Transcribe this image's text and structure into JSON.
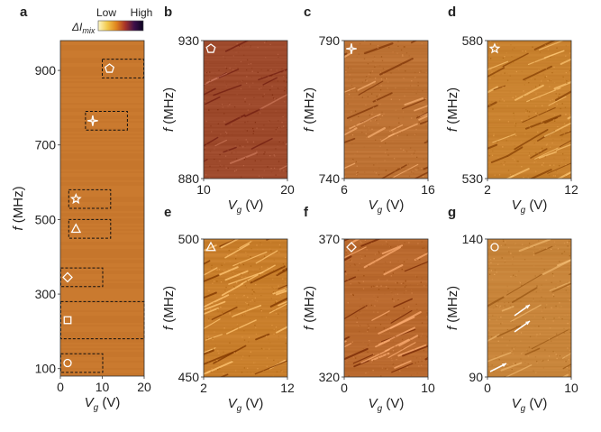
{
  "colorbar": {
    "symbol": "ΔI",
    "subscript": "mix",
    "low_label": "Low",
    "high_label": "High",
    "colors": [
      "#fdf7c6",
      "#f2c94c",
      "#e0851e",
      "#a8322a",
      "#3c0f4a",
      "#0b0320"
    ]
  },
  "chart_data": [
    {
      "panel": "a",
      "type": "heatmap",
      "xlabel_var": "V",
      "xlabel_sub": "g",
      "xlabel_unit": "(V)",
      "ylabel_var": "f",
      "ylabel_unit": "(MHz)",
      "xlim": [
        0,
        20
      ],
      "ylim": [
        80,
        980
      ],
      "xticks": [
        "0",
        "10",
        "20"
      ],
      "yticks": [
        "100",
        "300",
        "500",
        "700",
        "900"
      ],
      "base_color": "#c8782e",
      "regions": [
        {
          "marker": "pentagon",
          "x0": 10,
          "x1": 20,
          "y0": 880,
          "y1": 930
        },
        {
          "marker": "star4",
          "x0": 6,
          "x1": 16,
          "y0": 740,
          "y1": 790
        },
        {
          "marker": "star5",
          "x0": 2,
          "x1": 12,
          "y0": 530,
          "y1": 580
        },
        {
          "marker": "triangle",
          "x0": 2,
          "x1": 12,
          "y0": 450,
          "y1": 500
        },
        {
          "marker": "diamond",
          "x0": 0,
          "x1": 10,
          "y0": 320,
          "y1": 370
        },
        {
          "marker": "square",
          "x0": 0,
          "x1": 20,
          "y0": 180,
          "y1": 280
        },
        {
          "marker": "circle",
          "x0": 0,
          "x1": 10,
          "y0": 90,
          "y1": 140
        }
      ]
    },
    {
      "panel": "b",
      "type": "heatmap",
      "marker": "pentagon",
      "xlim": [
        10,
        20
      ],
      "ylim": [
        880,
        930
      ],
      "xticks": [
        "10",
        "20"
      ],
      "yticks": [
        "880",
        "930"
      ],
      "base_color": "#9e4a2c",
      "stripes": 0.25
    },
    {
      "panel": "c",
      "type": "heatmap",
      "marker": "star4",
      "xlim": [
        6,
        16
      ],
      "ylim": [
        740,
        790
      ],
      "xticks": [
        "6",
        "16"
      ],
      "yticks": [
        "740",
        "790"
      ],
      "base_color": "#bd7234",
      "stripes": 0.6
    },
    {
      "panel": "d",
      "type": "heatmap",
      "marker": "star5",
      "xlim": [
        2,
        12
      ],
      "ylim": [
        530,
        580
      ],
      "xticks": [
        "2",
        "12"
      ],
      "yticks": [
        "530",
        "580"
      ],
      "base_color": "#c9822f",
      "stripes": 0.7
    },
    {
      "panel": "e",
      "type": "heatmap",
      "marker": "triangle",
      "xlim": [
        2,
        12
      ],
      "ylim": [
        450,
        500
      ],
      "xticks": [
        "2",
        "12"
      ],
      "yticks": [
        "450",
        "500"
      ],
      "base_color": "#c97f2c",
      "stripes": 0.9
    },
    {
      "panel": "f",
      "type": "heatmap",
      "marker": "diamond",
      "xlim": [
        0,
        10
      ],
      "ylim": [
        320,
        370
      ],
      "xticks": [
        "0",
        "10"
      ],
      "yticks": [
        "320",
        "370"
      ],
      "base_color": "#b9692e",
      "stripes": 0.75
    },
    {
      "panel": "g",
      "type": "heatmap",
      "marker": "circle",
      "xlim": [
        0,
        10
      ],
      "ylim": [
        90,
        140
      ],
      "xticks": [
        "0",
        "10"
      ],
      "yticks": [
        "90",
        "140"
      ],
      "base_color": "#c8853b",
      "stripes": 0.3,
      "arrows": 3
    }
  ]
}
